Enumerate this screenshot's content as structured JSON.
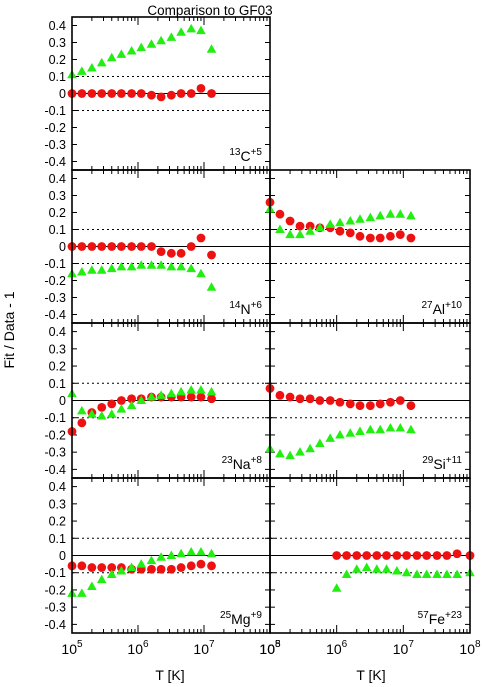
{
  "title": "Comparison to GF03",
  "ylabel": "Fit / Data - 1",
  "xlabel": "T [K]",
  "colors": {
    "red_series": "#ee1111",
    "green_series": "#22ee11",
    "frame": "#000000",
    "guide": "#000000"
  },
  "y_tick_labels": [
    "-0.4",
    "-0.3",
    "-0.2",
    "-0.1",
    "0",
    "0.1",
    "0.2",
    "0.3",
    "0.4"
  ],
  "x_tick_labels": [
    {
      "base": "10",
      "exp": "5"
    },
    {
      "base": "10",
      "exp": "6"
    },
    {
      "base": "10",
      "exp": "7"
    },
    {
      "base": "10",
      "exp": "8"
    }
  ],
  "chart_data": [
    {
      "type": "scatter",
      "ion": "13C",
      "charge": "+5",
      "xscale": "log",
      "xlim": [
        100000,
        100000000
      ],
      "ylim": [
        -0.45,
        0.45
      ],
      "guides": [
        0.1,
        -0.1
      ],
      "zero_line": true,
      "series": [
        {
          "marker": "circle",
          "color": "red",
          "x": [
            100000,
            141000,
            200000,
            282000,
            400000,
            560000,
            800000,
            1120000,
            1600000,
            2240000,
            3200000,
            4500000,
            6400000,
            9000000,
            13000000
          ],
          "y": [
            0.0,
            0.0,
            0.0,
            0.0,
            0.0,
            0.0,
            0.0,
            0.0,
            -0.01,
            -0.02,
            -0.01,
            0.0,
            0.0,
            0.03,
            0.0
          ]
        },
        {
          "marker": "triangle",
          "color": "green",
          "x": [
            100000,
            141000,
            200000,
            282000,
            400000,
            560000,
            800000,
            1120000,
            1600000,
            2240000,
            3200000,
            4500000,
            6400000,
            9000000,
            13000000
          ],
          "y": [
            0.11,
            0.13,
            0.15,
            0.18,
            0.21,
            0.23,
            0.25,
            0.27,
            0.29,
            0.31,
            0.33,
            0.36,
            0.38,
            0.37,
            0.26
          ]
        }
      ]
    },
    {
      "type": "scatter",
      "ion": "14N",
      "charge": "+6",
      "xscale": "log",
      "xlim": [
        100000,
        100000000
      ],
      "ylim": [
        -0.45,
        0.45
      ],
      "guides": [
        0.1,
        -0.1
      ],
      "zero_line": true,
      "series": [
        {
          "marker": "circle",
          "color": "red",
          "x": [
            100000,
            141000,
            200000,
            282000,
            400000,
            560000,
            800000,
            1120000,
            1600000,
            2240000,
            3200000,
            4500000,
            6400000,
            9000000,
            13000000
          ],
          "y": [
            0.0,
            0.0,
            0.0,
            0.0,
            0.0,
            0.0,
            0.0,
            0.0,
            0.0,
            -0.03,
            -0.04,
            -0.04,
            0.0,
            0.05,
            -0.05
          ]
        },
        {
          "marker": "triangle",
          "color": "green",
          "x": [
            100000,
            141000,
            200000,
            282000,
            400000,
            560000,
            800000,
            1120000,
            1600000,
            2240000,
            3200000,
            4500000,
            6400000,
            9000000,
            13000000
          ],
          "y": [
            -0.16,
            -0.15,
            -0.14,
            -0.14,
            -0.13,
            -0.12,
            -0.12,
            -0.11,
            -0.11,
            -0.11,
            -0.12,
            -0.12,
            -0.13,
            -0.16,
            -0.24
          ]
        }
      ]
    },
    {
      "type": "scatter",
      "ion": "27Al",
      "charge": "+10",
      "xscale": "log",
      "xlim": [
        100000,
        100000000
      ],
      "ylim": [
        -0.45,
        0.45
      ],
      "guides": [
        0.1,
        -0.1
      ],
      "zero_line": true,
      "series": [
        {
          "marker": "circle",
          "color": "red",
          "x": [
            100000,
            141000,
            200000,
            282000,
            400000,
            560000,
            800000,
            1120000,
            1600000,
            2240000,
            3200000,
            4500000,
            6400000,
            9000000,
            13000000
          ],
          "y": [
            0.26,
            0.19,
            0.15,
            0.12,
            0.12,
            0.11,
            0.11,
            0.09,
            0.08,
            0.06,
            0.05,
            0.05,
            0.06,
            0.07,
            0.05
          ]
        },
        {
          "marker": "triangle",
          "color": "green",
          "x": [
            100000,
            141000,
            200000,
            282000,
            400000,
            560000,
            800000,
            1120000,
            1600000,
            2240000,
            3200000,
            4500000,
            6400000,
            9000000,
            13000000
          ],
          "y": [
            0.22,
            0.1,
            0.07,
            0.07,
            0.09,
            0.11,
            0.13,
            0.14,
            0.15,
            0.16,
            0.17,
            0.18,
            0.19,
            0.19,
            0.18
          ]
        }
      ]
    },
    {
      "type": "scatter",
      "ion": "23Na",
      "charge": "+8",
      "xscale": "log",
      "xlim": [
        100000,
        100000000
      ],
      "ylim": [
        -0.45,
        0.45
      ],
      "guides": [
        0.1,
        -0.1
      ],
      "zero_line": true,
      "series": [
        {
          "marker": "circle",
          "color": "red",
          "x": [
            100000,
            141000,
            200000,
            282000,
            400000,
            560000,
            800000,
            1120000,
            1600000,
            2240000,
            3200000,
            4500000,
            6400000,
            9000000,
            13000000
          ],
          "y": [
            -0.18,
            -0.13,
            -0.07,
            -0.04,
            -0.02,
            0.0,
            0.01,
            0.01,
            0.02,
            0.02,
            0.02,
            0.02,
            0.02,
            0.02,
            0.01
          ]
        },
        {
          "marker": "triangle",
          "color": "green",
          "x": [
            100000,
            141000,
            200000,
            282000,
            400000,
            560000,
            800000,
            1120000,
            1600000,
            2240000,
            3200000,
            4500000,
            6400000,
            9000000,
            13000000
          ],
          "y": [
            0.04,
            -0.06,
            -0.08,
            -0.09,
            -0.08,
            -0.05,
            -0.03,
            0.0,
            0.02,
            0.03,
            0.04,
            0.05,
            0.06,
            0.06,
            0.05
          ]
        }
      ]
    },
    {
      "type": "scatter",
      "ion": "29Si",
      "charge": "+11",
      "xscale": "log",
      "xlim": [
        100000,
        100000000
      ],
      "ylim": [
        -0.45,
        0.45
      ],
      "guides": [
        0.1,
        -0.1
      ],
      "zero_line": true,
      "series": [
        {
          "marker": "circle",
          "color": "red",
          "x": [
            100000,
            141000,
            200000,
            282000,
            400000,
            560000,
            800000,
            1120000,
            1600000,
            2240000,
            3200000,
            4500000,
            6400000,
            9000000,
            13000000
          ],
          "y": [
            0.07,
            0.03,
            0.02,
            0.01,
            0.01,
            0.0,
            0.0,
            -0.01,
            -0.02,
            -0.03,
            -0.03,
            -0.02,
            -0.01,
            0.0,
            -0.03
          ]
        },
        {
          "marker": "triangle",
          "color": "green",
          "x": [
            100000,
            141000,
            200000,
            282000,
            400000,
            560000,
            800000,
            1120000,
            1600000,
            2240000,
            3200000,
            4500000,
            6400000,
            9000000,
            13000000
          ],
          "y": [
            -0.28,
            -0.31,
            -0.32,
            -0.3,
            -0.28,
            -0.25,
            -0.22,
            -0.2,
            -0.19,
            -0.18,
            -0.17,
            -0.17,
            -0.16,
            -0.16,
            -0.17
          ]
        }
      ]
    },
    {
      "type": "scatter",
      "ion": "25Mg",
      "charge": "+9",
      "xscale": "log",
      "xlim": [
        100000,
        100000000
      ],
      "ylim": [
        -0.45,
        0.45
      ],
      "guides": [
        0.1,
        -0.1
      ],
      "zero_line": true,
      "series": [
        {
          "marker": "circle",
          "color": "red",
          "x": [
            100000,
            141000,
            200000,
            282000,
            400000,
            560000,
            800000,
            1120000,
            1600000,
            2240000,
            3200000,
            4500000,
            6400000,
            9000000,
            13000000
          ],
          "y": [
            -0.06,
            -0.06,
            -0.07,
            -0.07,
            -0.07,
            -0.07,
            -0.08,
            -0.08,
            -0.08,
            -0.08,
            -0.08,
            -0.07,
            -0.06,
            -0.05,
            -0.06
          ]
        },
        {
          "marker": "triangle",
          "color": "green",
          "x": [
            100000,
            141000,
            200000,
            282000,
            400000,
            560000,
            800000,
            1120000,
            1600000,
            2240000,
            3200000,
            4500000,
            6400000,
            9000000,
            13000000
          ],
          "y": [
            -0.22,
            -0.22,
            -0.18,
            -0.14,
            -0.11,
            -0.09,
            -0.07,
            -0.05,
            -0.03,
            -0.01,
            0.0,
            0.01,
            0.02,
            0.02,
            0.01
          ]
        }
      ]
    },
    {
      "type": "scatter",
      "ion": "57Fe",
      "charge": "+23",
      "xscale": "log",
      "xlim": [
        100000,
        100000000
      ],
      "ylim": [
        -0.45,
        0.45
      ],
      "guides": [
        0.1,
        -0.1
      ],
      "zero_line": true,
      "series": [
        {
          "marker": "circle",
          "color": "red",
          "x": [
            1000000,
            1410000,
            2000000,
            2820000,
            4000000,
            5600000,
            8000000,
            11200000,
            16000000,
            22400000,
            32000000,
            45000000,
            64000000,
            100000000
          ],
          "y": [
            0.0,
            0.0,
            0.0,
            0.0,
            0.0,
            0.0,
            0.0,
            0.0,
            0.0,
            0.0,
            0.0,
            0.0,
            0.01,
            0.0
          ]
        },
        {
          "marker": "triangle",
          "color": "green",
          "x": [
            1000000,
            1410000,
            2000000,
            2820000,
            4000000,
            5600000,
            8000000,
            11200000,
            16000000,
            22400000,
            32000000,
            45000000,
            64000000,
            100000000
          ],
          "y": [
            -0.19,
            -0.11,
            -0.08,
            -0.07,
            -0.08,
            -0.08,
            -0.09,
            -0.1,
            -0.11,
            -0.11,
            -0.11,
            -0.11,
            -0.11,
            -0.1
          ]
        }
      ]
    }
  ]
}
